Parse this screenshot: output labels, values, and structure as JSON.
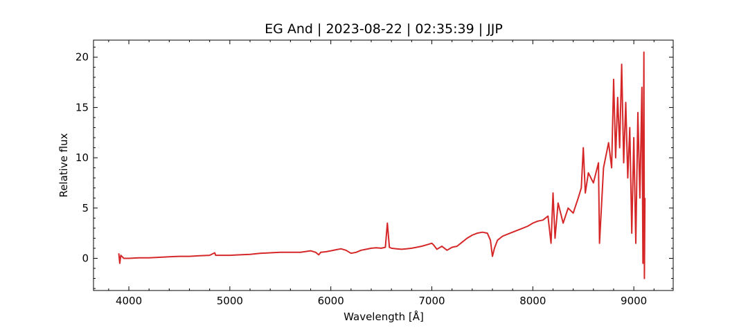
{
  "chart_data": {
    "type": "line",
    "title": "EG And | 2023-08-22 | 02:35:39 | JJP",
    "xlabel": "Wavelength [Å]",
    "ylabel": "Relative flux",
    "xlim": [
      3650,
      9390
    ],
    "ylim": [
      -3.2,
      21.7
    ],
    "x_ticks": [
      4000,
      5000,
      6000,
      7000,
      8000,
      9000
    ],
    "y_ticks": [
      0,
      5,
      10,
      15,
      20
    ],
    "grid": false,
    "line_color": "#d62728",
    "series": [
      {
        "x": [
          3900,
          3910,
          3920,
          3950,
          4000,
          4100,
          4200,
          4300,
          4400,
          4500,
          4600,
          4700,
          4800,
          4850,
          4860,
          4870,
          4900,
          5000,
          5100,
          5200,
          5300,
          5400,
          5500,
          5600,
          5700,
          5800,
          5850,
          5880,
          5900,
          5950,
          6000,
          6050,
          6100,
          6150,
          6200,
          6250,
          6300,
          6350,
          6400,
          6450,
          6500,
          6540,
          6560,
          6580,
          6600,
          6650,
          6700,
          6750,
          6800,
          6850,
          6900,
          6950,
          7000,
          7020,
          7050,
          7100,
          7150,
          7200,
          7250,
          7300,
          7350,
          7400,
          7450,
          7500,
          7550,
          7580,
          7600,
          7620,
          7650,
          7700,
          7750,
          7800,
          7850,
          7900,
          7950,
          8000,
          8050,
          8100,
          8150,
          8180,
          8200,
          8220,
          8250,
          8300,
          8350,
          8400,
          8450,
          8480,
          8500,
          8520,
          8550,
          8600,
          8650,
          8660,
          8700,
          8750,
          8780,
          8800,
          8820,
          8840,
          8860,
          8880,
          8900,
          8920,
          8940,
          8960,
          8980,
          9000,
          9020,
          9040,
          9060,
          9080,
          9090,
          9100,
          9105,
          9110
        ],
        "y": [
          0.5,
          -0.5,
          0.3,
          0.0,
          0.0,
          0.05,
          0.05,
          0.1,
          0.15,
          0.2,
          0.2,
          0.25,
          0.3,
          0.55,
          0.3,
          0.3,
          0.3,
          0.3,
          0.35,
          0.4,
          0.5,
          0.55,
          0.6,
          0.6,
          0.6,
          0.75,
          0.6,
          0.35,
          0.6,
          0.65,
          0.75,
          0.85,
          0.95,
          0.8,
          0.5,
          0.6,
          0.8,
          0.9,
          1.0,
          1.05,
          1.0,
          1.1,
          3.5,
          1.1,
          1.0,
          0.95,
          0.9,
          0.95,
          1.0,
          1.1,
          1.2,
          1.35,
          1.5,
          1.3,
          0.9,
          1.2,
          0.8,
          1.1,
          1.2,
          1.6,
          2.0,
          2.3,
          2.5,
          2.6,
          2.5,
          1.8,
          0.2,
          1.0,
          1.8,
          2.2,
          2.4,
          2.6,
          2.8,
          3.0,
          3.2,
          3.5,
          3.7,
          3.8,
          4.2,
          1.5,
          6.5,
          2.0,
          5.5,
          3.5,
          5.0,
          4.5,
          6.0,
          7.0,
          11.0,
          6.5,
          8.5,
          7.5,
          9.5,
          1.5,
          9.0,
          11.5,
          9.0,
          17.8,
          10.0,
          16.0,
          11.0,
          19.3,
          9.5,
          15.5,
          8.0,
          13.0,
          2.5,
          12.0,
          1.5,
          14.5,
          6.0,
          17.0,
          -0.5,
          20.5,
          -2.0,
          6.0
        ]
      }
    ]
  }
}
